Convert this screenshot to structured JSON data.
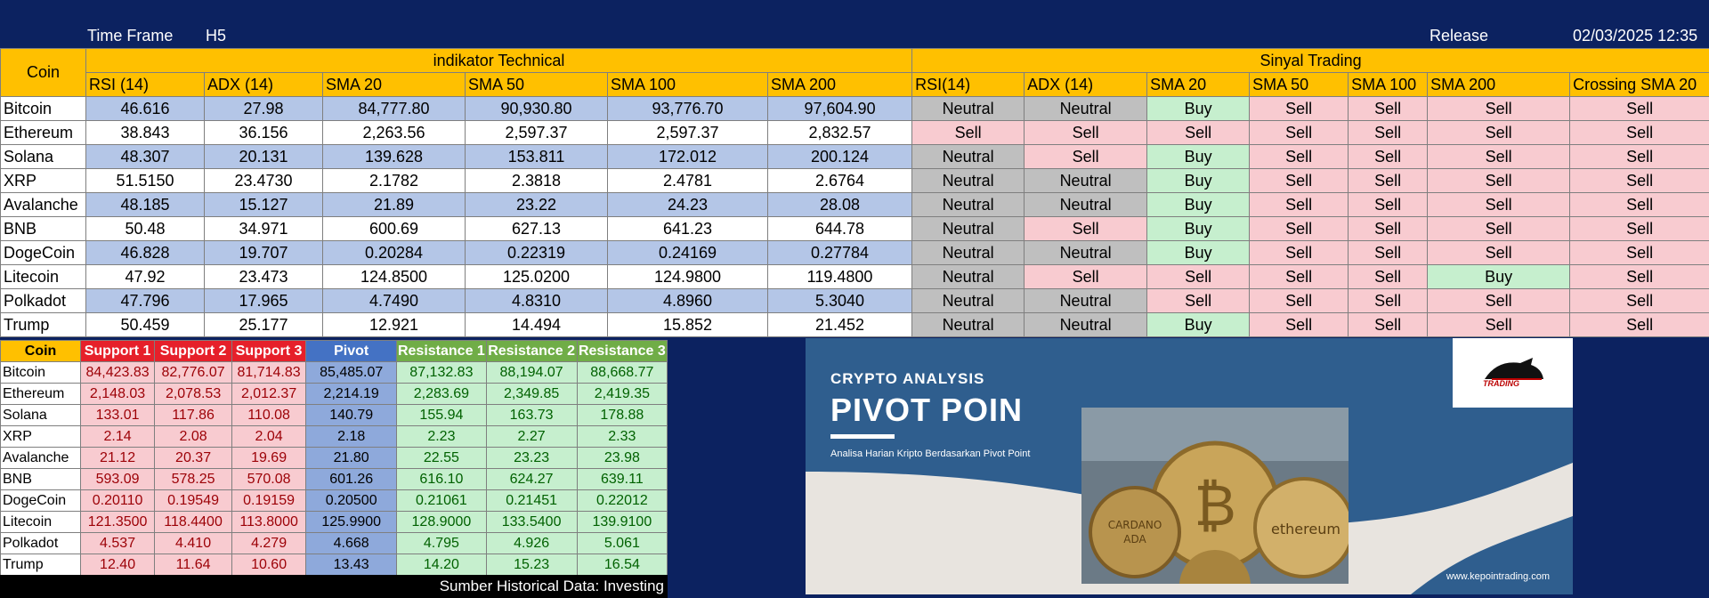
{
  "topbar": {
    "timeframe_label": "Time Frame",
    "timeframe_value": "H5",
    "release_label": "Release",
    "release_value": "02/03/2025 12:35"
  },
  "tech_table": {
    "coin_header": "Coin",
    "group_indicator": "indikator Technical",
    "group_signal": "Sinyal Trading",
    "indicator_headers": [
      "RSI (14)",
      "ADX (14)",
      "SMA 20",
      "SMA 50",
      "SMA 100",
      "SMA 200"
    ],
    "signal_headers": [
      "RSI(14)",
      "ADX (14)",
      "SMA 20",
      "SMA 50",
      "SMA 100",
      "SMA 200",
      "Crossing SMA 20"
    ],
    "rows": [
      {
        "coin": "Bitcoin",
        "values": [
          "46.616",
          "27.98",
          "84,777.80",
          "90,930.80",
          "93,776.70",
          "97,604.90"
        ],
        "signals": [
          "Neutral",
          "Neutral",
          "Buy",
          "Sell",
          "Sell",
          "Sell",
          "Sell"
        ]
      },
      {
        "coin": "Ethereum",
        "values": [
          "38.843",
          "36.156",
          "2,263.56",
          "2,597.37",
          "2,597.37",
          "2,832.57"
        ],
        "signals": [
          "Sell",
          "Sell",
          "Sell",
          "Sell",
          "Sell",
          "Sell",
          "Sell"
        ]
      },
      {
        "coin": "Solana",
        "values": [
          "48.307",
          "20.131",
          "139.628",
          "153.811",
          "172.012",
          "200.124"
        ],
        "signals": [
          "Neutral",
          "Sell",
          "Buy",
          "Sell",
          "Sell",
          "Sell",
          "Sell"
        ]
      },
      {
        "coin": "XRP",
        "values": [
          "51.5150",
          "23.4730",
          "2.1782",
          "2.3818",
          "2.4781",
          "2.6764"
        ],
        "signals": [
          "Neutral",
          "Neutral",
          "Buy",
          "Sell",
          "Sell",
          "Sell",
          "Sell"
        ]
      },
      {
        "coin": "Avalanche",
        "values": [
          "48.185",
          "15.127",
          "21.89",
          "23.22",
          "24.23",
          "28.08"
        ],
        "signals": [
          "Neutral",
          "Neutral",
          "Buy",
          "Sell",
          "Sell",
          "Sell",
          "Sell"
        ]
      },
      {
        "coin": "BNB",
        "values": [
          "50.48",
          "34.971",
          "600.69",
          "627.13",
          "641.23",
          "644.78"
        ],
        "signals": [
          "Neutral",
          "Sell",
          "Buy",
          "Sell",
          "Sell",
          "Sell",
          "Sell"
        ]
      },
      {
        "coin": "DogeCoin",
        "values": [
          "46.828",
          "19.707",
          "0.20284",
          "0.22319",
          "0.24169",
          "0.27784"
        ],
        "signals": [
          "Neutral",
          "Neutral",
          "Buy",
          "Sell",
          "Sell",
          "Sell",
          "Sell"
        ]
      },
      {
        "coin": "Litecoin",
        "values": [
          "47.92",
          "23.473",
          "124.8500",
          "125.0200",
          "124.9800",
          "119.4800"
        ],
        "signals": [
          "Neutral",
          "Sell",
          "Sell",
          "Sell",
          "Sell",
          "Buy",
          "Sell"
        ]
      },
      {
        "coin": "Polkadot",
        "values": [
          "47.796",
          "17.965",
          "4.7490",
          "4.8310",
          "4.8960",
          "5.3040"
        ],
        "signals": [
          "Neutral",
          "Neutral",
          "Sell",
          "Sell",
          "Sell",
          "Sell",
          "Sell"
        ]
      },
      {
        "coin": "Trump",
        "values": [
          "50.459",
          "25.177",
          "12.921",
          "14.494",
          "15.852",
          "21.452"
        ],
        "signals": [
          "Neutral",
          "Neutral",
          "Buy",
          "Sell",
          "Sell",
          "Sell",
          "Sell"
        ]
      }
    ]
  },
  "pivot_table": {
    "headers": [
      "Coin",
      "Support 1",
      "Support 2",
      "Support 3",
      "Pivot",
      "Resistance 1",
      "Resistance 2",
      "Resistance 3"
    ],
    "rows": [
      {
        "coin": "Bitcoin",
        "values": [
          "84,423.83",
          "82,776.07",
          "81,714.83",
          "85,485.07",
          "87,132.83",
          "88,194.07",
          "88,668.77"
        ]
      },
      {
        "coin": "Ethereum",
        "values": [
          "2,148.03",
          "2,078.53",
          "2,012.37",
          "2,214.19",
          "2,283.69",
          "2,349.85",
          "2,419.35"
        ]
      },
      {
        "coin": "Solana",
        "values": [
          "133.01",
          "117.86",
          "110.08",
          "140.79",
          "155.94",
          "163.73",
          "178.88"
        ]
      },
      {
        "coin": "XRP",
        "values": [
          "2.14",
          "2.08",
          "2.04",
          "2.18",
          "2.23",
          "2.27",
          "2.33"
        ]
      },
      {
        "coin": "Avalanche",
        "values": [
          "21.12",
          "20.37",
          "19.69",
          "21.80",
          "22.55",
          "23.23",
          "23.98"
        ]
      },
      {
        "coin": "BNB",
        "values": [
          "593.09",
          "578.25",
          "570.08",
          "601.26",
          "616.10",
          "624.27",
          "639.11"
        ]
      },
      {
        "coin": "DogeCoin",
        "values": [
          "0.20110",
          "0.19549",
          "0.19159",
          "0.20500",
          "0.21061",
          "0.21451",
          "0.22012"
        ]
      },
      {
        "coin": "Litecoin",
        "values": [
          "121.3500",
          "118.4400",
          "113.8000",
          "125.9900",
          "128.9000",
          "133.5400",
          "139.9100"
        ]
      },
      {
        "coin": "Polkadot",
        "values": [
          "4.537",
          "4.410",
          "4.279",
          "4.668",
          "4.795",
          "4.926",
          "5.061"
        ]
      },
      {
        "coin": "Trump",
        "values": [
          "12.40",
          "11.64",
          "10.60",
          "13.43",
          "14.20",
          "15.23",
          "16.54"
        ]
      }
    ]
  },
  "footer": {
    "source": "Sumber Historical Data: Investing"
  },
  "banner": {
    "line1": "CRYPTO ANALYSIS",
    "line2": "PIVOT POIN",
    "line3": "Analisa Harian Kripto Berdasarkan Pivot Point",
    "website": "www.kepointrading.com",
    "logo_text": "TRADING",
    "coin_label_1": "CARDANO",
    "coin_label_2": "ADA",
    "coin_label_3": "ethereum",
    "colors": {
      "panel": "#2f5e8e",
      "bg": "#e8e4df"
    }
  }
}
